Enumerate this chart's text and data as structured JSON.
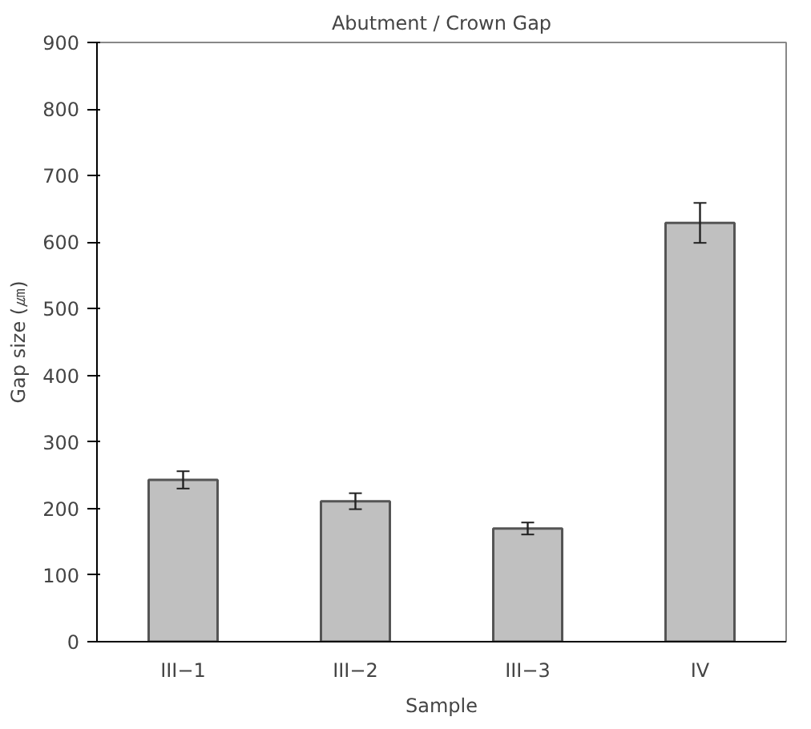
{
  "chart_data": {
    "type": "bar",
    "title": "Abutment / Crown Gap",
    "xlabel": "Sample",
    "ylabel": "Gap size (㎛)",
    "categories": [
      "III−1",
      "III−2",
      "III−3",
      "IV"
    ],
    "values": [
      243,
      211,
      170,
      629
    ],
    "errors": [
      13,
      12,
      9,
      30
    ],
    "color": "#c0c0c0",
    "ylim": [
      0,
      900
    ],
    "yticks": [
      0,
      100,
      200,
      300,
      400,
      500,
      600,
      700,
      800,
      900
    ],
    "grid": false
  }
}
